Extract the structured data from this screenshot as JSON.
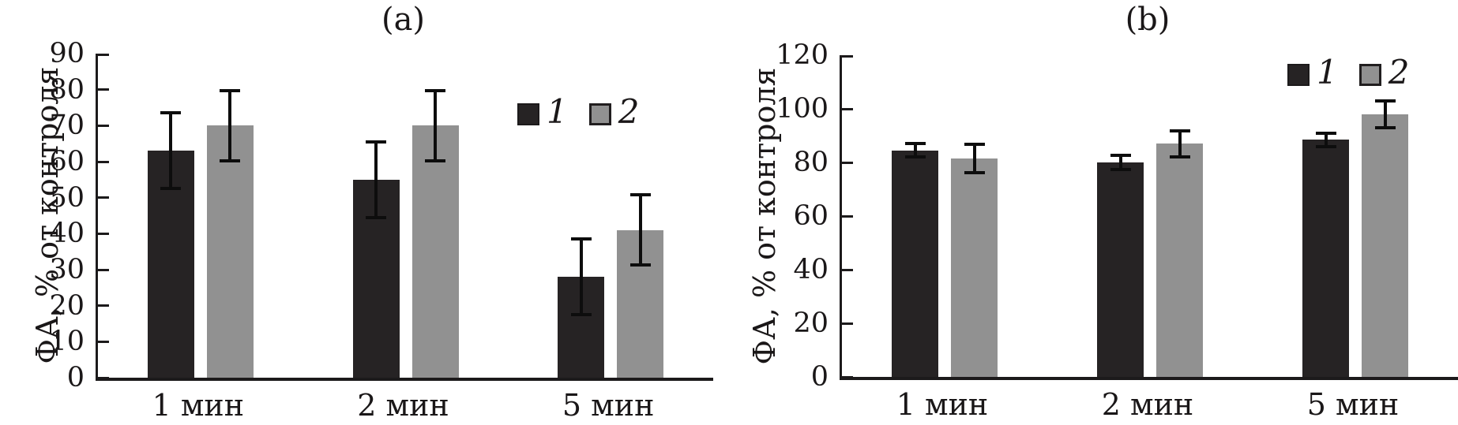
{
  "figure": {
    "description": "Two-panel grouped bar chart with error bars",
    "background": "#ffffff",
    "axis_color": "#1c1a1b",
    "error_bar_color": "#0d0d0d"
  },
  "chart_data": [
    {
      "type": "bar",
      "title": "(a)",
      "ylabel": "ФА, % от контроля",
      "xlabel": "",
      "categories": [
        "1 мин",
        "2 мин",
        "5 мин"
      ],
      "ylim": [
        0,
        90
      ],
      "ytick_step": 10,
      "grid": false,
      "legend_position": "upper right",
      "series": [
        {
          "name": "1",
          "color": "#262324",
          "values": [
            63,
            55,
            28
          ],
          "errors": [
            10.5,
            10.5,
            10.5
          ]
        },
        {
          "name": "2",
          "color": "#919191",
          "values": [
            70,
            70,
            41
          ],
          "errors": [
            9.7,
            9.7,
            9.7
          ]
        }
      ]
    },
    {
      "type": "bar",
      "title": "(b)",
      "ylabel": "ФА, % от контроля",
      "xlabel": "",
      "categories": [
        "1 мин",
        "2 мин",
        "5 мин"
      ],
      "ylim": [
        0,
        120
      ],
      "ytick_step": 20,
      "grid": false,
      "legend_position": "upper right",
      "series": [
        {
          "name": "1",
          "color": "#262324",
          "values": [
            84.5,
            80,
            88.5
          ],
          "errors": [
            2.5,
            2.7,
            2.5
          ]
        },
        {
          "name": "2",
          "color": "#919191",
          "values": [
            81.5,
            87,
            98
          ],
          "errors": [
            5.4,
            4.8,
            5
          ]
        }
      ]
    }
  ]
}
